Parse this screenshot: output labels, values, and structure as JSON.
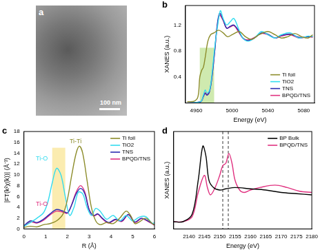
{
  "chart_data": [
    {
      "type": "image",
      "title": "a",
      "annotations": [
        {
          "text": "100 nm"
        }
      ]
    },
    {
      "type": "line",
      "title": "b",
      "xlabel": "Energy (eV)",
      "ylabel": "XANES (a.u.)",
      "xlim": [
        4948,
        5092
      ],
      "xticks": [
        4960,
        5000,
        5040,
        5080
      ],
      "ylim": [
        0,
        1.5
      ],
      "yticks": [
        0.4,
        0.8,
        1.2
      ],
      "legend": "lower right",
      "highlight": {
        "x": [
          4964,
          4980
        ],
        "y": [
          0,
          0.85
        ],
        "color": "#a8d86e"
      },
      "series": [
        {
          "name": "Ti foil",
          "color": "#8c8c2a",
          "x": [
            4950,
            4958,
            4962,
            4964,
            4966,
            4968,
            4970,
            4973,
            4976,
            4980,
            4985,
            4990,
            4995,
            5000,
            5008,
            5015,
            5022,
            5030,
            5040,
            5048,
            5055,
            5062,
            5070,
            5078,
            5085,
            5090
          ],
          "values": [
            0.02,
            0.03,
            0.1,
            0.4,
            0.5,
            0.55,
            0.7,
            0.95,
            1.05,
            1.08,
            1.12,
            1.08,
            1.02,
            1.05,
            1.1,
            1.02,
            0.98,
            1.05,
            1.1,
            1.05,
            1.0,
            1.02,
            1.07,
            1.02,
            1.0,
            1.05
          ]
        },
        {
          "name": "TiO2",
          "color": "#33dcef",
          "x": [
            4950,
            4965,
            4968,
            4970,
            4972,
            4975,
            4978,
            4981,
            4984,
            4987,
            4990,
            4994,
            4998,
            5002,
            5007,
            5012,
            5018,
            5025,
            5033,
            5040,
            5048,
            5055,
            5065,
            5075,
            5085,
            5090
          ],
          "values": [
            0.0,
            0.02,
            0.12,
            0.2,
            0.15,
            0.2,
            0.5,
            0.9,
            1.2,
            1.42,
            1.3,
            1.2,
            1.25,
            1.3,
            1.15,
            1.0,
            0.95,
            1.0,
            1.1,
            1.05,
            1.0,
            1.05,
            1.08,
            1.0,
            1.03,
            1.02
          ]
        },
        {
          "name": "TNS",
          "color": "#2a2ab0",
          "x": [
            4950,
            4965,
            4968,
            4970,
            4972,
            4975,
            4978,
            4981,
            4983,
            4986,
            4990,
            4994,
            4998,
            5002,
            5007,
            5012,
            5018,
            5025,
            5033,
            5040,
            5048,
            5055,
            5065,
            5075,
            5085,
            5090
          ],
          "values": [
            0.0,
            0.02,
            0.1,
            0.15,
            0.12,
            0.18,
            0.45,
            0.85,
            1.15,
            1.38,
            1.28,
            1.15,
            1.18,
            1.2,
            1.12,
            1.0,
            0.96,
            1.0,
            1.08,
            1.06,
            1.0,
            1.04,
            1.06,
            1.01,
            1.02,
            1.02
          ]
        },
        {
          "name": "BPQD/TNS",
          "color": "#e0307f",
          "x": [
            4950,
            4965,
            4968,
            4970,
            4972,
            4975,
            4978,
            4981,
            4983,
            4986,
            4990,
            4994,
            4998,
            5002,
            5007,
            5012,
            5018,
            5025,
            5033,
            5040,
            5048,
            5055,
            5065,
            5075,
            5085,
            5090
          ],
          "values": [
            0.0,
            0.02,
            0.1,
            0.16,
            0.13,
            0.19,
            0.45,
            0.85,
            1.12,
            1.35,
            1.27,
            1.15,
            1.17,
            1.19,
            1.1,
            1.0,
            0.97,
            1.01,
            1.07,
            1.05,
            1.0,
            1.03,
            1.05,
            1.0,
            1.02,
            1.01
          ]
        }
      ]
    },
    {
      "type": "line",
      "title": "c",
      "xlabel": "R (Å)",
      "ylabel": "|FT(k²χ(k))| (Å⁻³)",
      "xlim": [
        0,
        6
      ],
      "xticks": [
        0,
        1,
        2,
        3,
        4,
        5,
        6
      ],
      "ylim": [
        0,
        18
      ],
      "yticks": [
        0,
        2,
        4,
        6,
        8,
        10,
        12,
        14,
        16,
        18
      ],
      "legend": "upper right",
      "highlight": {
        "x": [
          1.3,
          1.9
        ],
        "y": [
          0,
          15
        ],
        "color": "#f7dc6f"
      },
      "annotations": [
        {
          "text": "Ti-Ti",
          "x": 2.1,
          "y": 16.2,
          "color": "#8c8c2a"
        },
        {
          "text": "Ti-O",
          "x": 0.55,
          "y": 13.0,
          "color": "#33dcef"
        },
        {
          "text": "Ti-O",
          "x": 0.55,
          "y": 4.6,
          "color": "#e0307f"
        }
      ],
      "series": [
        {
          "name": "Ti foil",
          "color": "#8c8c2a",
          "x": [
            0,
            0.3,
            0.6,
            0.9,
            1.2,
            1.5,
            1.8,
            2.0,
            2.2,
            2.4,
            2.55,
            2.7,
            2.9,
            3.1,
            3.3,
            3.5,
            3.8,
            4.1,
            4.4,
            4.7,
            4.9,
            5.1,
            5.3,
            5.6,
            5.9,
            6
          ],
          "values": [
            0.3,
            0.5,
            0.4,
            0.8,
            1.0,
            1.5,
            2.8,
            5.5,
            10,
            14,
            15.3,
            14,
            9,
            4,
            1.5,
            0.8,
            1.2,
            1.0,
            2.0,
            3.3,
            2.5,
            1.0,
            1.3,
            2.0,
            1.0,
            0.8
          ]
        },
        {
          "name": "TiO2",
          "color": "#33dcef",
          "x": [
            0,
            0.3,
            0.6,
            0.9,
            1.1,
            1.3,
            1.5,
            1.7,
            1.9,
            2.1,
            2.3,
            2.5,
            2.7,
            2.9,
            3.1,
            3.3,
            3.5,
            3.8,
            4.1,
            4.4,
            4.7,
            5.0,
            5.3,
            5.6,
            5.9,
            6
          ],
          "values": [
            0.5,
            1.2,
            2.0,
            3.0,
            5,
            8.5,
            11.2,
            10,
            6,
            2.5,
            4,
            6.8,
            6.5,
            4,
            2.5,
            3.8,
            3.3,
            1.8,
            2.5,
            1.5,
            2.5,
            1.5,
            2.2,
            2.3,
            1.0,
            1.2
          ]
        },
        {
          "name": "TNS",
          "color": "#2a2ab0",
          "x": [
            0,
            0.3,
            0.6,
            0.9,
            1.2,
            1.5,
            1.8,
            2.0,
            2.2,
            2.4,
            2.6,
            2.8,
            3.0,
            3.2,
            3.4,
            3.6,
            3.9,
            4.2,
            4.5,
            4.8,
            5.1,
            5.4,
            5.7,
            6
          ],
          "values": [
            0.6,
            1.5,
            1.2,
            1.8,
            2.8,
            3.6,
            3.3,
            3.0,
            4.5,
            6.5,
            7.5,
            6.5,
            3.5,
            2.5,
            2.8,
            2.0,
            1.2,
            1.8,
            1.5,
            2.7,
            1.3,
            2.0,
            1.5,
            0.8
          ]
        },
        {
          "name": "BPQD/TNS",
          "color": "#e0307f",
          "x": [
            0,
            0.3,
            0.6,
            0.9,
            1.2,
            1.5,
            1.8,
            2.0,
            2.2,
            2.4,
            2.6,
            2.8,
            3.0,
            3.2,
            3.4,
            3.6,
            3.9,
            4.2,
            4.5,
            4.8,
            5.1,
            5.4,
            5.7,
            6
          ],
          "values": [
            0.5,
            1.3,
            1.1,
            1.6,
            2.6,
            3.3,
            3.1,
            2.9,
            4.6,
            6.8,
            8.0,
            6.8,
            3.6,
            2.4,
            2.7,
            1.9,
            1.1,
            1.7,
            1.4,
            2.6,
            1.2,
            1.9,
            1.4,
            0.7
          ]
        }
      ]
    },
    {
      "type": "line",
      "title": "d",
      "xlabel": "Energy (eV)",
      "ylabel": "XANES (a.u.)",
      "xlim": [
        2135,
        2180
      ],
      "xticks": [
        2140,
        2145,
        2150,
        2155,
        2160,
        2165,
        2170,
        2175,
        2180
      ],
      "ylim": [
        0,
        0.4
      ],
      "tick_labels": "x",
      "legend": "upper right",
      "vlines": [
        2151,
        2152.8
      ],
      "series": [
        {
          "name": "BP Bulk",
          "color": "#000000",
          "x": [
            2135,
            2138,
            2141,
            2143,
            2144.5,
            2145.5,
            2146.5,
            2148,
            2150,
            2152,
            2155,
            2160,
            2165,
            2170,
            2175,
            2180
          ],
          "values": [
            0.03,
            0.03,
            0.06,
            0.2,
            0.34,
            0.3,
            0.2,
            0.17,
            0.16,
            0.165,
            0.17,
            0.165,
            0.16,
            0.15,
            0.145,
            0.14
          ]
        },
        {
          "name": "BPQD/TNS",
          "color": "#e0307f",
          "x": [
            2135,
            2138,
            2141,
            2143,
            2145,
            2146,
            2147,
            2148.5,
            2150,
            2151,
            2152,
            2153,
            2154,
            2155,
            2156.5,
            2158,
            2160,
            2163,
            2168,
            2172,
            2176,
            2180
          ],
          "values": [
            0.03,
            0.03,
            0.05,
            0.15,
            0.22,
            0.17,
            0.14,
            0.17,
            0.22,
            0.26,
            0.27,
            0.31,
            0.27,
            0.2,
            0.16,
            0.15,
            0.16,
            0.17,
            0.18,
            0.17,
            0.155,
            0.15
          ]
        }
      ]
    }
  ]
}
